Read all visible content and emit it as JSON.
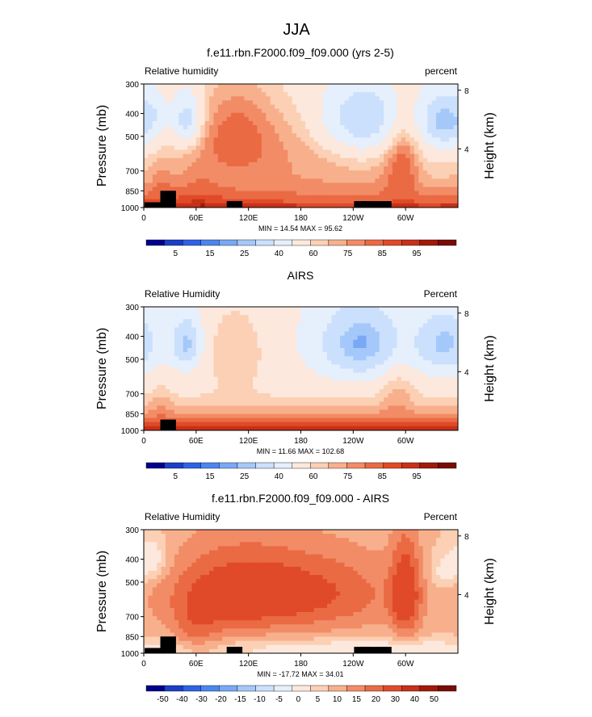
{
  "figure_title": "JJA",
  "chart_data": [
    {
      "type": "heatmap",
      "title": "f.e11.rbn.F2000.f09_f09.000 (yrs 2-5)",
      "left_label": "Relative humidity",
      "right_label": "percent",
      "ylabel": "Pressure (mb)",
      "ylabel_right": "Height (km)",
      "x_ticks": [
        "0",
        "60E",
        "120E",
        "180",
        "120W",
        "60W"
      ],
      "y_ticks": [
        "300",
        "400",
        "500",
        "700",
        "850",
        "1000"
      ],
      "y_right_ticks": [
        "8",
        "4"
      ],
      "stats": "MIN = 14.54  MAX = 95.62",
      "min": 14.54,
      "max": 95.62,
      "colorbar_labels": [
        "5",
        "15",
        "25",
        "40",
        "60",
        "75",
        "85",
        "95"
      ],
      "colorbar_colors": [
        "#00008c",
        "#1a3fc6",
        "#2e62e6",
        "#4a86f0",
        "#79a8f5",
        "#a5c8fa",
        "#cbe0fc",
        "#e6effc",
        "#fce8dc",
        "#fcd0b4",
        "#f8b08c",
        "#f28c66",
        "#ea6a44",
        "#e04a28",
        "#c83018",
        "#a01a0a",
        "#7a0c04"
      ],
      "field": "model",
      "missing": [
        [
          10,
          950,
          1000
        ],
        [
          28,
          850,
          1000
        ],
        [
          104,
          940,
          1000
        ],
        [
          250,
          940,
          1000
        ],
        [
          257,
          940,
          1000
        ],
        [
          275,
          940,
          1000
        ]
      ]
    },
    {
      "type": "heatmap",
      "title": "AIRS",
      "left_label": "Relative Humidity",
      "right_label": "Percent",
      "ylabel": "Pressure (mb)",
      "ylabel_right": "Height (km)",
      "x_ticks": [
        "0",
        "60E",
        "120E",
        "180",
        "120W",
        "60W"
      ],
      "y_ticks": [
        "300",
        "400",
        "500",
        "700",
        "850",
        "1000"
      ],
      "y_right_ticks": [
        "8",
        "4"
      ],
      "stats": "MIN = 11.66  MAX = 102.68",
      "min": 11.66,
      "max": 102.68,
      "colorbar_labels": [
        "5",
        "15",
        "25",
        "40",
        "60",
        "75",
        "85",
        "95"
      ],
      "colorbar_colors": [
        "#00008c",
        "#1a3fc6",
        "#2e62e6",
        "#4a86f0",
        "#79a8f5",
        "#a5c8fa",
        "#cbe0fc",
        "#e6effc",
        "#fce8dc",
        "#fcd0b4",
        "#f8b08c",
        "#f28c66",
        "#ea6a44",
        "#e04a28",
        "#c83018",
        "#a01a0a",
        "#7a0c04"
      ],
      "field": "obs",
      "missing": [
        [
          28,
          900,
          1000
        ]
      ]
    },
    {
      "type": "heatmap",
      "title": "f.e11.rbn.F2000.f09_f09.000 - AIRS",
      "left_label": "Relative Humidity",
      "right_label": "Percent",
      "ylabel": "Pressure (mb)",
      "ylabel_right": "Height (km)",
      "x_ticks": [
        "0",
        "60E",
        "120E",
        "180",
        "120W",
        "60W"
      ],
      "y_ticks": [
        "300",
        "400",
        "500",
        "700",
        "850",
        "1000"
      ],
      "y_right_ticks": [
        "8",
        "4"
      ],
      "stats": "MIN = -17.72  MAX = 34.01",
      "min": -17.72,
      "max": 34.01,
      "colorbar_labels": [
        "-50",
        "-40",
        "-30",
        "-20",
        "-15",
        "-10",
        "-5",
        "0",
        "5",
        "10",
        "15",
        "20",
        "30",
        "40",
        "50"
      ],
      "colorbar_colors": [
        "#00008c",
        "#1a3fc6",
        "#2e62e6",
        "#4a86f0",
        "#79a8f5",
        "#a5c8fa",
        "#cbe0fc",
        "#e6effc",
        "#fce8dc",
        "#fcd0b4",
        "#f8b08c",
        "#f28c66",
        "#ea6a44",
        "#e04a28",
        "#c83018",
        "#a01a0a",
        "#7a0c04"
      ],
      "field": "diff",
      "missing": [
        [
          10,
          950,
          1000
        ],
        [
          28,
          850,
          1000
        ],
        [
          104,
          940,
          1000
        ],
        [
          250,
          940,
          1000
        ],
        [
          257,
          940,
          1000
        ],
        [
          275,
          940,
          1000
        ]
      ]
    }
  ]
}
